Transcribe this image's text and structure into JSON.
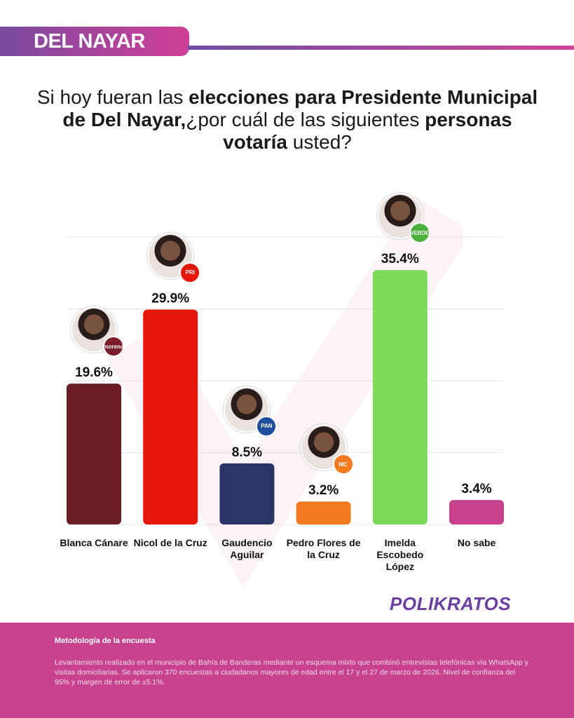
{
  "header": {
    "region": "DEL NAYAR"
  },
  "question": {
    "p1": "Si hoy fueran las ",
    "b1": "elecciones para Presidente Municipal de Del Nayar,",
    "p2": "¿por cuál de las siguientes ",
    "b2": "personas votaría",
    "p3": " usted?"
  },
  "chart_data": {
    "type": "bar",
    "title": "Si hoy fueran las elecciones para Presidente Municipal de Del Nayar,¿por cuál de las siguientes personas votaría usted?",
    "categories": [
      "Blanca Cánare",
      "Nicol de la Cruz",
      "Gaudencio Aguilar",
      "Pedro Flores de la Cruz",
      "Imelda Escobedo López",
      "No sabe"
    ],
    "values": [
      19.6,
      29.9,
      8.5,
      3.2,
      35.4,
      3.4
    ],
    "labels": [
      "19.6%",
      "29.9%",
      "8.5%",
      "3.2%",
      "35.4%",
      "3.4%"
    ],
    "parties": [
      "morena",
      "PRI",
      "PAN",
      "MC",
      "VERDE",
      ""
    ],
    "colors": [
      "#6b1f24",
      "#e3170a",
      "#2a3567",
      "#f47a20",
      "#7ed957",
      "#c8428e"
    ],
    "ylim": [
      0,
      40
    ],
    "grid": true,
    "xlabel": "",
    "ylabel": ""
  },
  "brand": "POLIKRATOS",
  "footer": {
    "heading": "Metodología de la encuesta",
    "text": "Levantamiento realizado en el municipio de Bahía de Banderas mediante un esquema mixto que combinó entrevistas telefónicas vía WhatsApp y visitas domiciliarias. Se aplicaron 370 encuestas a ciudadanos mayores de edad entre el 17 y el 27 de marzo de 2026. Nivel de confianza del 95% y margen de error de ±5.1%."
  }
}
